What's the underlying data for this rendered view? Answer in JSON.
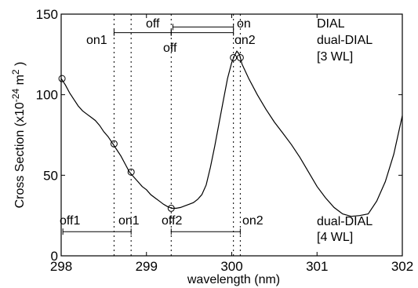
{
  "chart_data": {
    "type": "line",
    "title": "",
    "xlabel": "wavelength (nm)",
    "ylabel": "Cross Section (x10",
    "ylabel_exp": "-24",
    "ylabel_unit": " m",
    "ylabel_unit_exp": "2",
    "ylabel_close": " )",
    "xlim": [
      298,
      302
    ],
    "ylim": [
      0,
      150
    ],
    "xticks": [
      298,
      299,
      300,
      301,
      302
    ],
    "xtick_labels": [
      "298",
      "299",
      "300",
      "301",
      "302"
    ],
    "yticks": [
      0,
      50,
      100,
      150
    ],
    "ytick_labels": [
      "0",
      "50",
      "100",
      "150"
    ],
    "grid": false,
    "series": [
      {
        "points": [
          [
            298.0,
            110
          ],
          [
            298.05,
            106
          ],
          [
            298.1,
            101
          ],
          [
            298.15,
            97
          ],
          [
            298.2,
            93
          ],
          [
            298.25,
            90
          ],
          [
            298.3,
            88
          ],
          [
            298.35,
            86
          ],
          [
            298.4,
            84
          ],
          [
            298.45,
            81
          ],
          [
            298.5,
            77
          ],
          [
            298.55,
            74
          ],
          [
            298.6,
            70
          ],
          [
            298.65,
            66
          ],
          [
            298.7,
            62
          ],
          [
            298.75,
            57
          ],
          [
            298.8,
            52
          ],
          [
            298.85,
            49
          ],
          [
            298.9,
            46
          ],
          [
            298.95,
            43
          ],
          [
            299.0,
            41
          ],
          [
            299.05,
            38
          ],
          [
            299.1,
            36
          ],
          [
            299.15,
            34
          ],
          [
            299.2,
            32
          ],
          [
            299.25,
            30.5
          ],
          [
            299.3,
            29.5
          ],
          [
            299.35,
            29.5
          ],
          [
            299.4,
            30
          ],
          [
            299.45,
            31
          ],
          [
            299.5,
            32
          ],
          [
            299.55,
            33
          ],
          [
            299.6,
            35
          ],
          [
            299.65,
            38
          ],
          [
            299.7,
            44
          ],
          [
            299.75,
            55
          ],
          [
            299.8,
            68
          ],
          [
            299.85,
            82
          ],
          [
            299.9,
            96
          ],
          [
            299.95,
            110
          ],
          [
            300.0,
            120
          ],
          [
            300.03,
            124
          ],
          [
            300.06,
            127
          ],
          [
            300.09,
            125
          ],
          [
            300.12,
            119
          ],
          [
            300.2,
            110
          ],
          [
            300.3,
            100
          ],
          [
            300.4,
            91
          ],
          [
            300.5,
            83
          ],
          [
            300.6,
            76
          ],
          [
            300.7,
            69
          ],
          [
            300.8,
            61
          ],
          [
            300.9,
            52
          ],
          [
            301.0,
            43
          ],
          [
            301.1,
            36
          ],
          [
            301.2,
            30
          ],
          [
            301.3,
            26
          ],
          [
            301.4,
            24.5
          ],
          [
            301.5,
            25
          ],
          [
            301.6,
            26
          ],
          [
            301.7,
            34
          ],
          [
            301.8,
            46
          ],
          [
            301.9,
            63
          ],
          [
            302.0,
            87
          ]
        ]
      }
    ],
    "markers": [
      [
        298.01,
        110
      ],
      [
        298.62,
        69.5
      ],
      [
        298.82,
        52
      ],
      [
        299.29,
        29.5
      ],
      [
        300.02,
        123
      ],
      [
        300.1,
        123
      ]
    ],
    "vertical_lines_x": [
      298.62,
      298.82,
      299.29,
      300.02,
      300.1
    ],
    "annotations": {
      "top_off": "off",
      "top_on": "on",
      "top_on1": "on1",
      "top_off2": "off",
      "top_on2": "on2",
      "bottom_off1": "off1",
      "bottom_on1": "on1",
      "bottom_off2": "off2",
      "bottom_on2": "on2",
      "legend_dial": "DIAL",
      "legend_dual_dial": "dual-DIAL",
      "legend_3wl": "[3 WL]",
      "legend_dual_dial_4": "dual-DIAL",
      "legend_4wl": "[4 WL]"
    }
  }
}
